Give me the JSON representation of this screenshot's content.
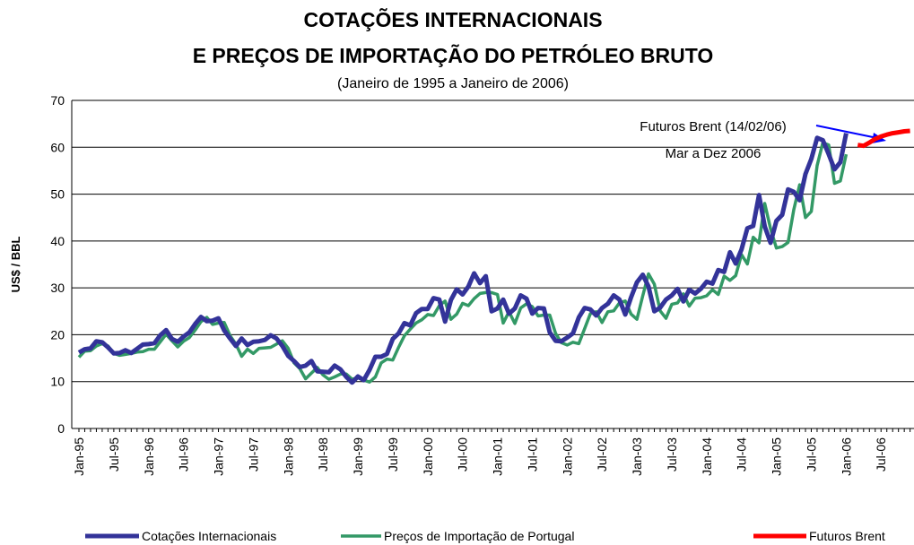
{
  "chart_data": {
    "type": "line",
    "title": [
      "COTAÇÕES INTERNACIONAIS",
      "E PREÇOS DE IMPORTAÇÃO DO PETRÓLEO BRUTO"
    ],
    "subtitle": "(Janeiro de 1995 a Janeiro de 2006)",
    "y_label": "US$ / BBL",
    "annotations": [
      "Futuros Brent (14/02/06)",
      "Mar a Dez 2006"
    ],
    "ylim": [
      0,
      70
    ],
    "yticks": [
      0,
      10,
      20,
      30,
      40,
      50,
      60,
      70
    ],
    "grid": true,
    "categories": [
      "Jan-95",
      null,
      null,
      null,
      null,
      null,
      "Jul-95",
      null,
      null,
      null,
      null,
      null,
      "Jan-96",
      null,
      null,
      null,
      null,
      null,
      "Jul-96",
      null,
      null,
      null,
      null,
      null,
      "Jan-97",
      null,
      null,
      null,
      null,
      null,
      "Jul-97",
      null,
      null,
      null,
      null,
      null,
      "Jan-98",
      null,
      null,
      null,
      null,
      null,
      "Jul-98",
      null,
      null,
      null,
      null,
      null,
      "Jan-99",
      null,
      null,
      null,
      null,
      null,
      "Jul-99",
      null,
      null,
      null,
      null,
      null,
      "Jan-00",
      null,
      null,
      null,
      null,
      null,
      "Jul-00",
      null,
      null,
      null,
      null,
      null,
      "Jan-01",
      null,
      null,
      null,
      null,
      null,
      "Jul-01",
      null,
      null,
      null,
      null,
      null,
      "Jan-02",
      null,
      null,
      null,
      null,
      null,
      "Jul-02",
      null,
      null,
      null,
      null,
      null,
      "Jan-03",
      null,
      null,
      null,
      null,
      null,
      "Jul-03",
      null,
      null,
      null,
      null,
      null,
      "Jan-04",
      null,
      null,
      null,
      null,
      null,
      "Jul-04",
      null,
      null,
      null,
      null,
      null,
      "Jan-05",
      null,
      null,
      null,
      null,
      null,
      "Jul-05",
      null,
      null,
      null,
      null,
      null,
      "Jan-06",
      null,
      null,
      null,
      null,
      null,
      "Jul-06",
      null,
      null,
      null,
      null,
      null
    ],
    "series": [
      {
        "name": "Cotações Internacionais",
        "color": "#333399",
        "width": 5,
        "values": [
          16.2,
          16.9,
          17.1,
          18.6,
          18.4,
          17.3,
          16.0,
          16.1,
          16.7,
          16.1,
          17.0,
          17.9,
          18.0,
          18.2,
          19.9,
          21.0,
          19.1,
          18.5,
          19.6,
          20.5,
          22.3,
          23.8,
          22.9,
          23.0,
          23.5,
          20.9,
          19.2,
          17.6,
          19.2,
          17.8,
          18.5,
          18.6,
          18.9,
          19.9,
          19.2,
          17.6,
          15.5,
          14.4,
          13.1,
          13.4,
          14.4,
          12.2,
          12.1,
          12.0,
          13.4,
          12.6,
          11.0,
          9.8,
          11.1,
          10.3,
          12.5,
          15.3,
          15.3,
          15.9,
          19.1,
          20.3,
          22.5,
          22.0,
          24.6,
          25.5,
          25.5,
          27.8,
          27.5,
          22.8,
          27.4,
          29.7,
          28.6,
          30.3,
          33.1,
          31.0,
          32.5,
          25.0,
          25.6,
          27.5,
          24.5,
          25.6,
          28.4,
          27.7,
          24.5,
          25.7,
          25.6,
          20.5,
          18.7,
          18.6,
          19.4,
          20.3,
          23.7,
          25.7,
          25.4,
          24.1,
          25.7,
          26.6,
          28.4,
          27.5,
          24.3,
          28.0,
          31.2,
          32.8,
          30.3,
          25.0,
          25.8,
          27.5,
          28.4,
          29.8,
          27.1,
          29.6,
          28.8,
          29.8,
          31.3,
          30.9,
          33.8,
          33.4,
          37.6,
          35.2,
          38.2,
          42.7,
          43.2,
          49.8,
          43.1,
          39.6,
          44.3,
          45.6,
          51.0,
          50.5,
          48.7,
          54.3,
          57.5,
          62.0,
          61.5,
          58.5,
          55.3,
          56.8,
          63.0,
          null,
          null,
          null,
          null,
          null,
          null,
          null,
          null,
          null,
          null,
          null
        ]
      },
      {
        "name": "Preços de Importação de Portugal",
        "color": "#339966",
        "width": 3.5,
        "values": [
          15.2,
          16.5,
          16.6,
          17.6,
          18.1,
          17.6,
          16.0,
          15.6,
          15.8,
          16.0,
          16.3,
          16.4,
          16.9,
          16.9,
          18.5,
          20.1,
          18.7,
          17.4,
          18.6,
          19.4,
          21.0,
          22.8,
          23.7,
          22.2,
          22.5,
          22.6,
          19.8,
          18.0,
          15.4,
          16.9,
          16.0,
          17.1,
          17.2,
          17.3,
          18.0,
          18.7,
          17.1,
          14.0,
          12.8,
          10.6,
          11.8,
          13.0,
          11.4,
          10.5,
          11.0,
          11.6,
          11.6,
          10.5,
          10.8,
          10.3,
          9.9,
          11.0,
          14.0,
          14.8,
          14.6,
          17.3,
          19.8,
          21.2,
          22.5,
          23.2,
          24.3,
          24.1,
          26.2,
          27.2,
          23.3,
          24.4,
          26.7,
          26.2,
          27.7,
          28.8,
          29.0,
          29.0,
          28.6,
          22.5,
          24.9,
          22.4,
          25.7,
          26.6,
          26.0,
          24.0,
          24.2,
          24.2,
          20.3,
          18.3,
          17.8,
          18.4,
          18.1,
          21.3,
          24.5,
          24.9,
          22.6,
          24.9,
          25.1,
          26.8,
          27.2,
          24.4,
          23.3,
          28.3,
          33.0,
          30.8,
          25.1,
          23.5,
          26.5,
          26.8,
          28.7,
          26.1,
          27.8,
          27.9,
          28.3,
          29.6,
          28.6,
          32.5,
          31.6,
          32.6,
          37.1,
          35.1,
          40.8,
          39.6,
          48.0,
          42.6,
          38.5,
          38.8,
          39.7,
          46.7,
          52.0,
          45.0,
          46.3,
          56.1,
          61.0,
          60.5,
          52.3,
          52.8,
          58.5,
          null,
          null,
          null,
          null,
          null,
          null,
          null,
          null,
          null,
          null,
          null
        ]
      },
      {
        "name": "Futuros Brent",
        "color": "#ff0000",
        "width": 5,
        "values": [
          null,
          null,
          null,
          null,
          null,
          null,
          null,
          null,
          null,
          null,
          null,
          null,
          null,
          null,
          null,
          null,
          null,
          null,
          null,
          null,
          null,
          null,
          null,
          null,
          null,
          null,
          null,
          null,
          null,
          null,
          null,
          null,
          null,
          null,
          null,
          null,
          null,
          null,
          null,
          null,
          null,
          null,
          null,
          null,
          null,
          null,
          null,
          null,
          null,
          null,
          null,
          null,
          null,
          null,
          null,
          null,
          null,
          null,
          null,
          null,
          null,
          null,
          null,
          null,
          null,
          null,
          null,
          null,
          null,
          null,
          null,
          null,
          null,
          null,
          null,
          null,
          null,
          null,
          null,
          null,
          null,
          null,
          null,
          null,
          null,
          null,
          null,
          null,
          null,
          null,
          null,
          null,
          null,
          null,
          null,
          null,
          null,
          null,
          null,
          null,
          null,
          null,
          null,
          null,
          null,
          null,
          null,
          null,
          null,
          null,
          null,
          null,
          null,
          null,
          null,
          null,
          null,
          null,
          null,
          null,
          null,
          null,
          null,
          null,
          null,
          null,
          null,
          null,
          null,
          null,
          null,
          null,
          null,
          null,
          60.5,
          60.3,
          61.0,
          61.8,
          62.3,
          62.7,
          63.0,
          63.2,
          63.4,
          63.5
        ]
      }
    ]
  }
}
